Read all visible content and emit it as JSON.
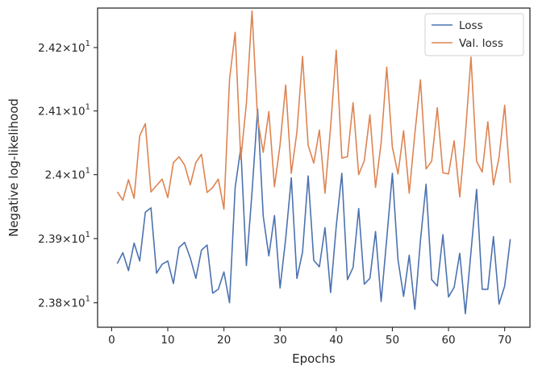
{
  "chart_data": {
    "type": "line",
    "title": "",
    "xlabel": "Epochs",
    "ylabel": "Negative log-likelihood",
    "xlim": [
      -2.5,
      74.5
    ],
    "ylim": [
      23.762,
      24.2625
    ],
    "y_scale": "log",
    "grid": false,
    "legend_position": "top-right",
    "x_ticks": [
      0,
      10,
      20,
      30,
      40,
      50,
      60,
      70
    ],
    "y_ticks": [
      {
        "value": 23.8,
        "mantissa": "2.38",
        "base": "10",
        "exponent": "1"
      },
      {
        "value": 23.9,
        "mantissa": "2.39",
        "base": "10",
        "exponent": "1"
      },
      {
        "value": 24.0,
        "mantissa": "2.4",
        "base": "10",
        "exponent": "1"
      },
      {
        "value": 24.1,
        "mantissa": "2.41",
        "base": "10",
        "exponent": "1"
      },
      {
        "value": 24.2,
        "mantissa": "2.42",
        "base": "10",
        "exponent": "1"
      }
    ],
    "x": [
      1,
      2,
      3,
      4,
      5,
      6,
      7,
      8,
      9,
      10,
      11,
      12,
      13,
      14,
      15,
      16,
      17,
      18,
      19,
      20,
      21,
      22,
      23,
      24,
      25,
      26,
      27,
      28,
      29,
      30,
      31,
      32,
      33,
      34,
      35,
      36,
      37,
      38,
      39,
      40,
      41,
      42,
      43,
      44,
      45,
      46,
      47,
      48,
      49,
      50,
      51,
      52,
      53,
      54,
      55,
      56,
      57,
      58,
      59,
      60,
      61,
      62,
      63,
      64,
      65,
      66,
      67,
      68,
      69,
      70,
      71
    ],
    "series": [
      {
        "name": "Loss",
        "color": "#4c72b0",
        "values": [
          23.861,
          23.878,
          23.85,
          23.893,
          23.865,
          23.941,
          23.948,
          23.846,
          23.86,
          23.865,
          23.83,
          23.886,
          23.894,
          23.87,
          23.838,
          23.882,
          23.89,
          23.815,
          23.821,
          23.848,
          23.8,
          23.98,
          24.042,
          23.858,
          23.972,
          24.103,
          23.935,
          23.873,
          23.936,
          23.823,
          23.9,
          23.995,
          23.838,
          23.879,
          23.998,
          23.866,
          23.856,
          23.917,
          23.816,
          23.919,
          24.002,
          23.836,
          23.855,
          23.947,
          23.829,
          23.838,
          23.911,
          23.802,
          23.9,
          24.002,
          23.867,
          23.81,
          23.874,
          23.79,
          23.897,
          23.985,
          23.836,
          23.826,
          23.906,
          23.809,
          23.824,
          23.877,
          23.783,
          23.879,
          23.977,
          23.821,
          23.821,
          23.903,
          23.798,
          23.826,
          23.899
        ]
      },
      {
        "name": "Val. loss",
        "color": "#dd8452",
        "values": [
          23.973,
          23.96,
          23.992,
          23.963,
          24.061,
          24.08,
          23.973,
          23.983,
          23.993,
          23.964,
          24.019,
          24.028,
          24.015,
          23.984,
          24.019,
          24.032,
          23.972,
          23.98,
          23.993,
          23.946,
          24.15,
          24.224,
          24.024,
          24.112,
          24.258,
          24.087,
          24.035,
          24.099,
          23.981,
          24.047,
          24.141,
          24.002,
          24.067,
          24.186,
          24.046,
          24.018,
          24.07,
          23.971,
          24.075,
          24.196,
          24.026,
          24.028,
          24.113,
          24.0,
          24.022,
          24.094,
          23.98,
          24.05,
          24.169,
          24.043,
          24.001,
          24.069,
          23.971,
          24.064,
          24.149,
          24.009,
          24.021,
          24.105,
          24.003,
          24.001,
          24.053,
          23.965,
          24.063,
          24.185,
          24.021,
          24.004,
          24.083,
          23.984,
          24.027,
          24.109,
          23.987
        ]
      }
    ]
  }
}
